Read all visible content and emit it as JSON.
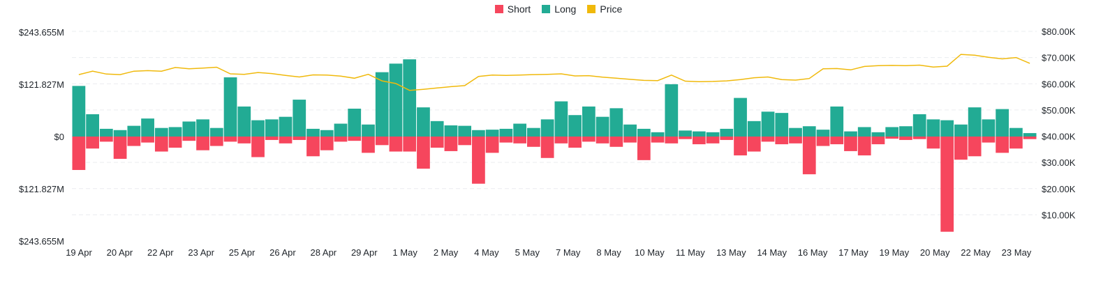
{
  "chart_data": {
    "type": "bar",
    "legend": {
      "position": "top-center",
      "items": [
        {
          "label": "Short",
          "color": "#f6465d"
        },
        {
          "label": "Long",
          "color": "#22ab94"
        },
        {
          "label": "Price",
          "color": "#f0b90b"
        }
      ]
    },
    "x_tick_labels": [
      "19 Apr",
      "20 Apr",
      "22 Apr",
      "23 Apr",
      "25 Apr",
      "26 Apr",
      "28 Apr",
      "29 Apr",
      "1 May",
      "2 May",
      "4 May",
      "5 May",
      "7 May",
      "8 May",
      "10 May",
      "11 May",
      "13 May",
      "14 May",
      "16 May",
      "17 May",
      "19 May",
      "20 May",
      "22 May",
      "23 May"
    ],
    "y_left": {
      "tick_labels": [
        "$243.655M",
        "$121.827M",
        "$0",
        "$121.827M",
        "$243.655M"
      ],
      "range_millions": [
        -243.655,
        243.655
      ]
    },
    "y_right": {
      "tick_labels": [
        "$80.00K",
        "$70.00K",
        "$60.00K",
        "$50.00K",
        "$40.00K",
        "$30.00K",
        "$20.00K",
        "$10.00K"
      ],
      "range_thousands": [
        0,
        80
      ]
    },
    "grid": true,
    "series": [
      {
        "name": "Long",
        "unit": "USD millions",
        "values": [
          118,
          52,
          18,
          15,
          25,
          42,
          20,
          22,
          35,
          40,
          20,
          138,
          70,
          38,
          40,
          46,
          86,
          18,
          15,
          30,
          65,
          28,
          150,
          170,
          180,
          68,
          36,
          26,
          25,
          15,
          16,
          18,
          30,
          20,
          40,
          82,
          50,
          70,
          46,
          66,
          28,
          18,
          10,
          122,
          14,
          12,
          10,
          18,
          90,
          36,
          58,
          55,
          20,
          24,
          16,
          70,
          12,
          22,
          10,
          22,
          24,
          52,
          40,
          38,
          28,
          68,
          40,
          64,
          20,
          8
        ]
      },
      {
        "name": "Short",
        "unit": "USD millions",
        "values": [
          78,
          28,
          12,
          52,
          22,
          14,
          35,
          26,
          10,
          32,
          22,
          12,
          16,
          48,
          8,
          16,
          8,
          46,
          32,
          12,
          10,
          38,
          20,
          35,
          35,
          75,
          26,
          34,
          20,
          110,
          38,
          14,
          16,
          24,
          50,
          16,
          26,
          12,
          16,
          24,
          14,
          55,
          14,
          16,
          6,
          18,
          16,
          8,
          44,
          35,
          12,
          18,
          16,
          88,
          22,
          18,
          34,
          44,
          18,
          5,
          8,
          6,
          28,
          222,
          54,
          46,
          14,
          38,
          28,
          6
        ]
      },
      {
        "name": "Price",
        "unit": "USD thousands",
        "values": [
          63.5,
          64.8,
          63.7,
          63.5,
          64.8,
          65.0,
          64.8,
          66.2,
          65.7,
          66.0,
          66.3,
          63.8,
          63.6,
          64.3,
          63.9,
          63.2,
          62.6,
          63.4,
          63.3,
          62.9,
          62.1,
          63.6,
          61.1,
          60.1,
          57.5,
          57.9,
          58.4,
          58.9,
          59.3,
          62.8,
          63.3,
          63.2,
          63.3,
          63.5,
          63.6,
          63.8,
          63.0,
          63.1,
          62.5,
          62.1,
          61.7,
          61.3,
          61.2,
          63.3,
          61.0,
          60.8,
          60.9,
          61.1,
          61.6,
          62.3,
          62.6,
          61.6,
          61.4,
          62.0,
          65.7,
          65.8,
          65.3,
          66.6,
          66.9,
          67.0,
          66.9,
          67.1,
          66.4,
          66.7,
          71.2,
          70.9,
          70.1,
          69.5,
          70.0,
          67.8
        ]
      }
    ]
  }
}
